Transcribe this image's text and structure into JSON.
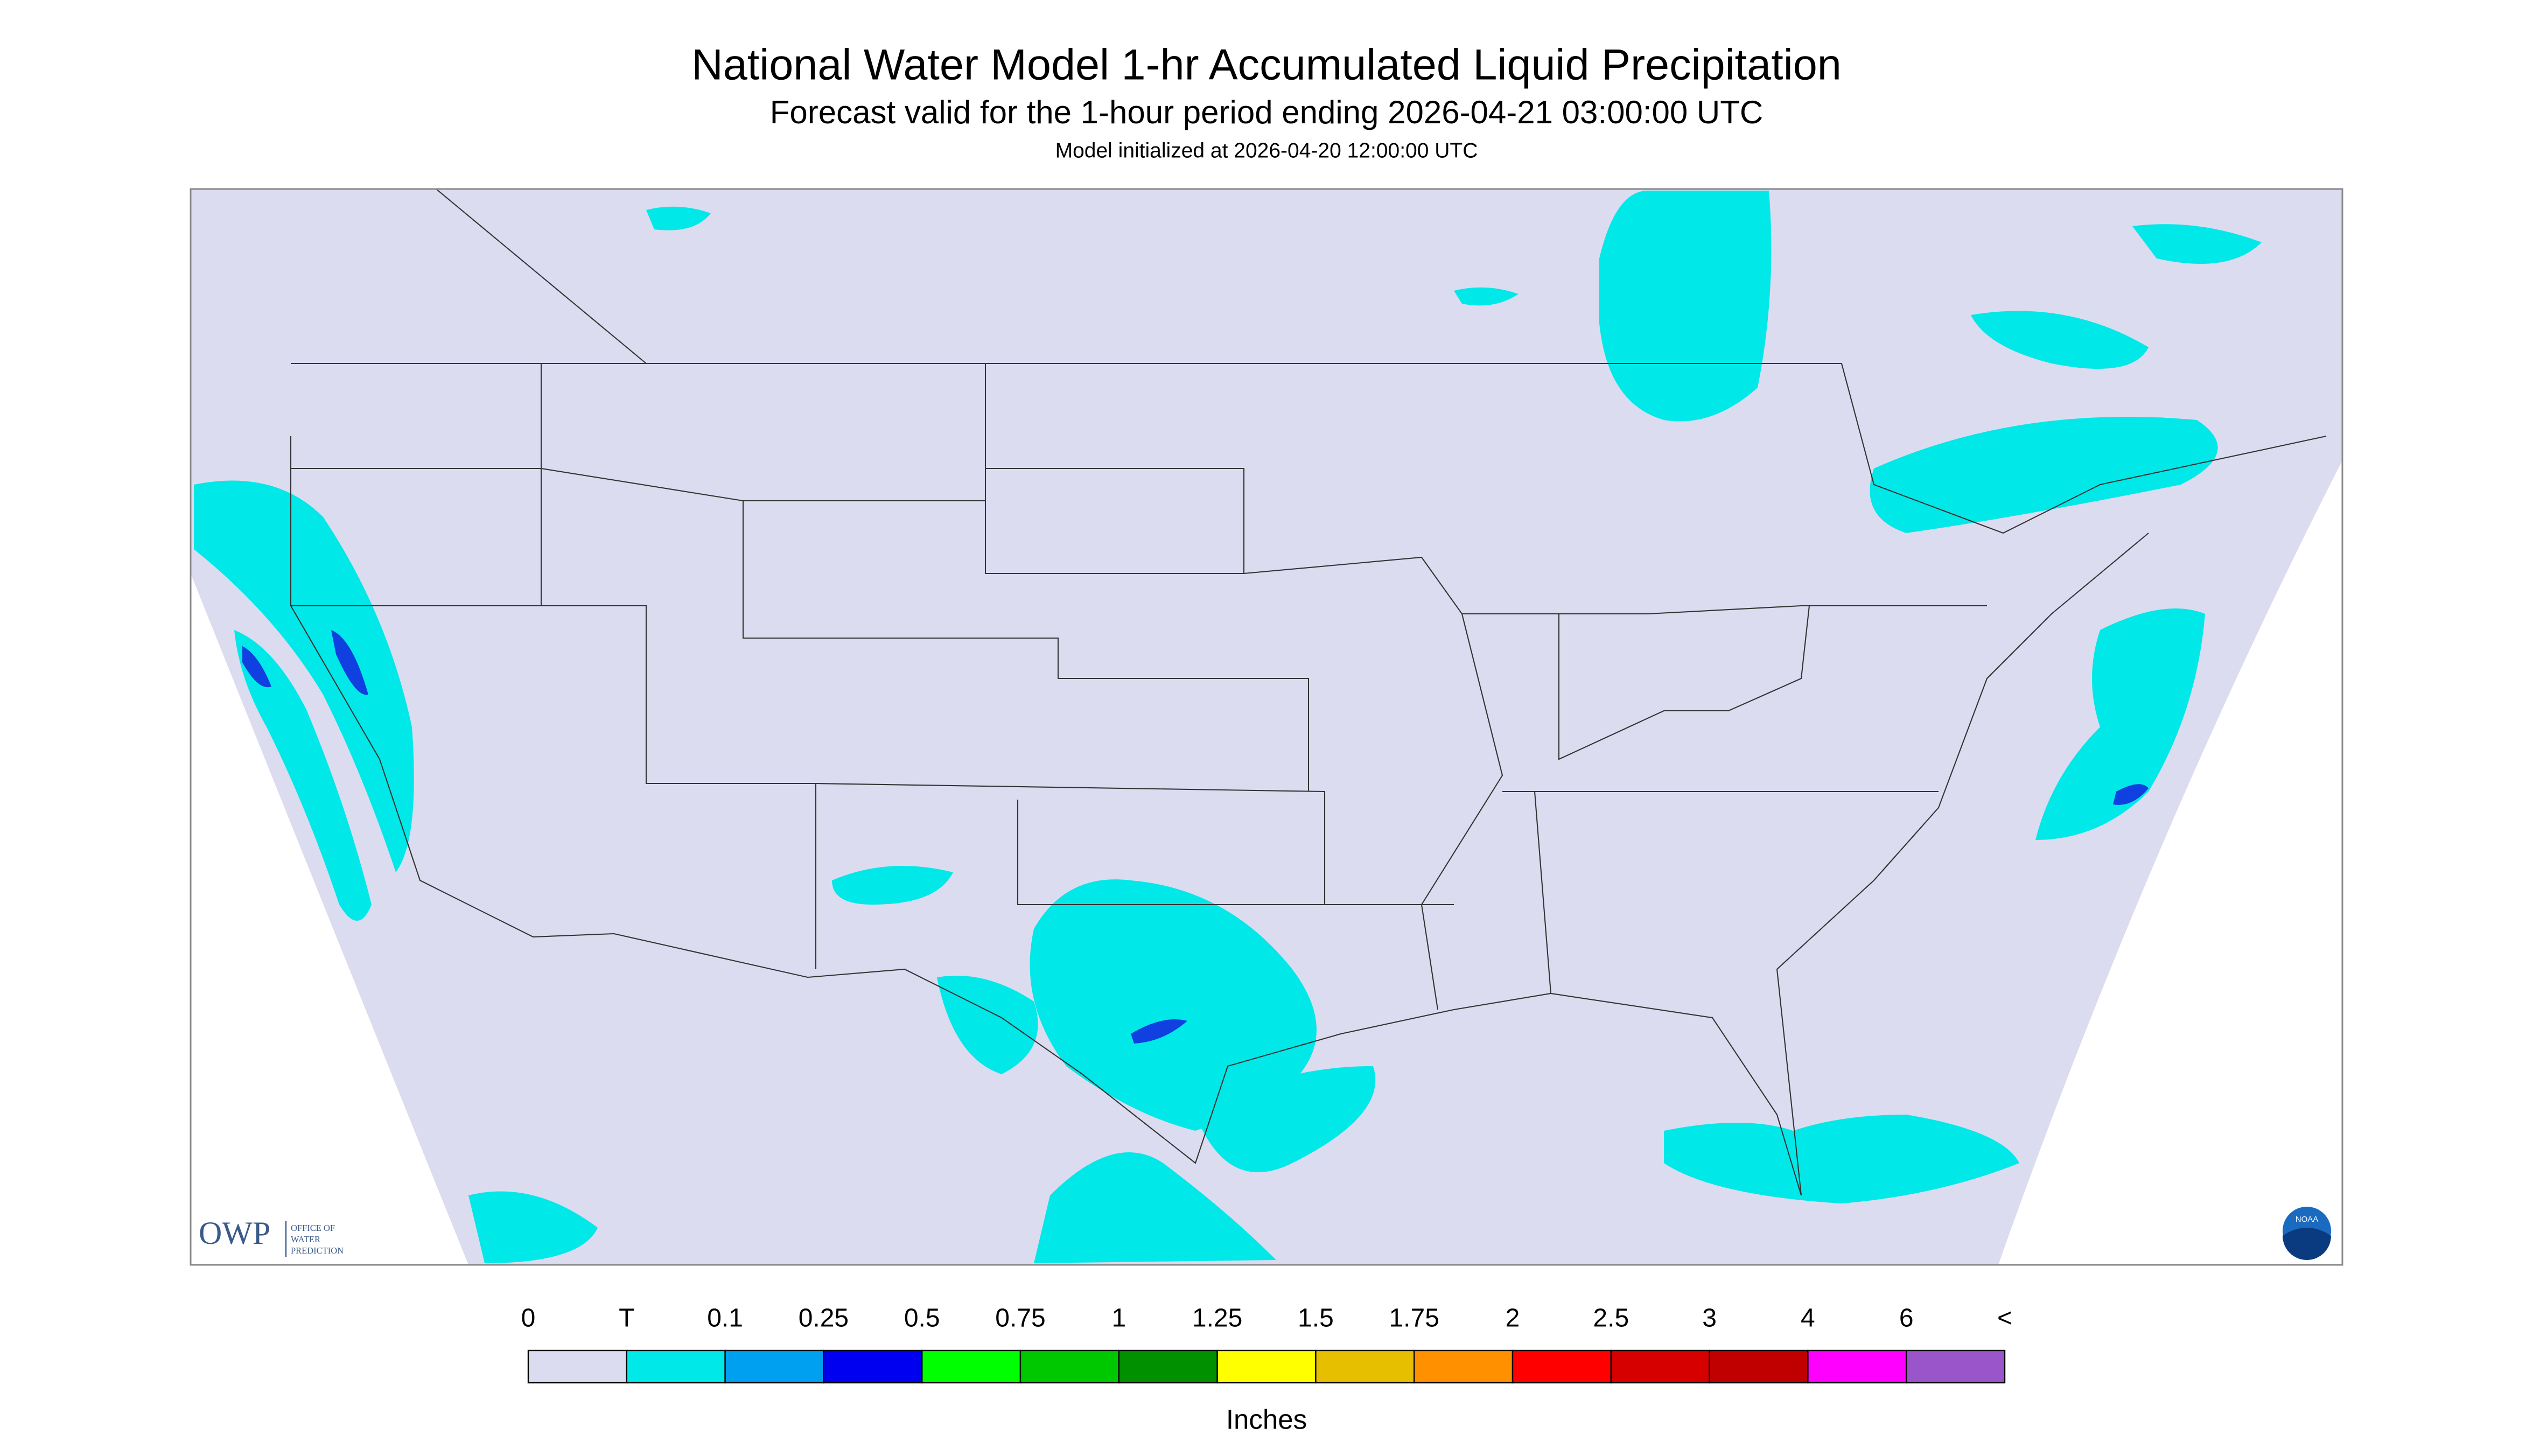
{
  "header": {
    "title": "National Water Model 1-hr Accumulated Liquid Precipitation",
    "subtitle": "Forecast valid for the 1-hour period ending 2026-04-21 03:00:00 UTC",
    "init": "Model initialized at 2026-04-20 12:00:00 UTC"
  },
  "logo": {
    "owp": "OWP",
    "line1": "OFFICE OF",
    "line2": "WATER",
    "line3": "PREDICTION",
    "noaa": "NOAA"
  },
  "legend": {
    "labels": [
      "0",
      "T",
      "0.1",
      "0.25",
      "0.5",
      "0.75",
      "1",
      "1.25",
      "1.5",
      "1.75",
      "2",
      "2.5",
      "3",
      "4",
      "6",
      "<"
    ],
    "colors": [
      "#dcdcf0",
      "#00e8e8",
      "#00a0f0",
      "#0000f0",
      "#00ff00",
      "#00c800",
      "#009000",
      "#ffff00",
      "#e6c000",
      "#ff9000",
      "#ff0000",
      "#d60000",
      "#c00000",
      "#ff00ff",
      "#9955c9"
    ],
    "unit": "Inches"
  }
}
